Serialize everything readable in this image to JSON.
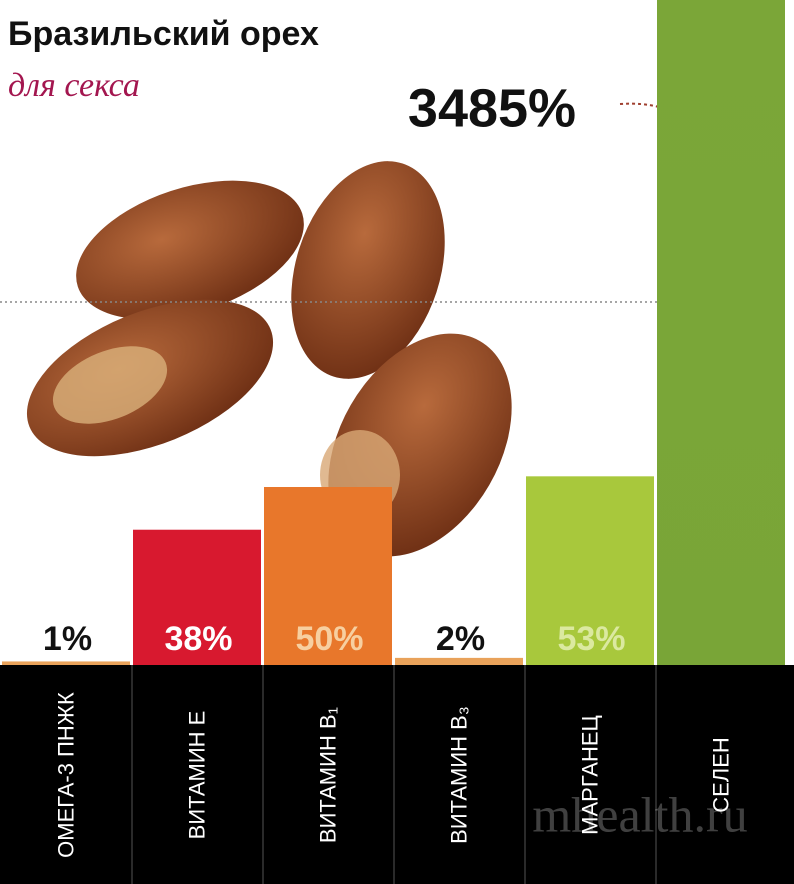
{
  "chart_data": {
    "type": "bar",
    "title": "Бразильский орех",
    "subtitle": "для секса",
    "categories": [
      "ОМЕГА-3 ПНЖК",
      "ВИТАМИН Е",
      "ВИТАМИН B₁",
      "ВИТАМИН B₃",
      "МАРГАНЕЦ",
      "СЕЛЕН"
    ],
    "values": [
      1,
      38,
      50,
      2,
      53,
      3485
    ],
    "value_labels": [
      "1%",
      "38%",
      "50%",
      "2%",
      "53%",
      "3485%"
    ],
    "colors": [
      "#e9a25a",
      "#d8192f",
      "#e8772b",
      "#e9a25a",
      "#a8c83c",
      "#86ad3e"
    ],
    "label_colors": [
      "#111111",
      "#ffffff",
      "#f7cfa0",
      "#111111",
      "#dbe9a0",
      "#111111"
    ],
    "watermark": "mhealth.ru"
  }
}
